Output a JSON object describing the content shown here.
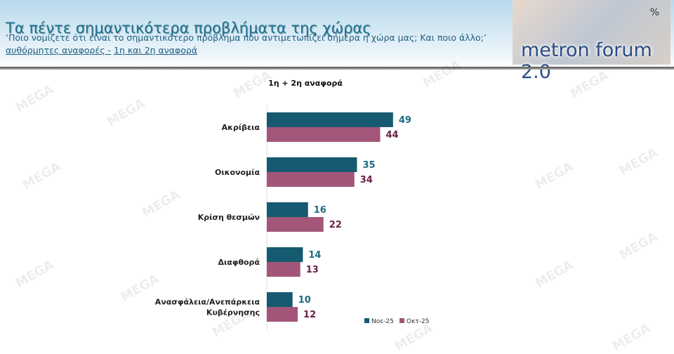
{
  "header": {
    "title": "Τα πέντε σημαντικότερα προβλήματα της χώρας",
    "question": "‘Ποιο νομίζετε ότι είναι το σημαντικότερο πρόβλημα που αντιμετωπίζει σήμερα η χώρα μας; Και ποιο άλλο;’",
    "note_a": "αυθόρμητες αναφορές -",
    "note_b": "1η και 2η αναφορά",
    "logo_text": "metron forum 2.0",
    "logo_symbol": "%"
  },
  "watermark": "MEGA",
  "chart_data": {
    "type": "bar",
    "orientation": "horizontal",
    "title": "1η + 2η αναφορά",
    "categories": [
      "Ακρίβεια",
      "Οικονομία",
      "Κρίση θεσμών",
      "Διαφθορά",
      "Ανασφάλεια/Ανεπάρκεια Κυβέρνησης"
    ],
    "series": [
      {
        "name": "Νοε-25",
        "color": "#155a70",
        "label_color": "#1d6a80",
        "values": [
          49,
          35,
          16,
          14,
          10
        ]
      },
      {
        "name": "Οκτ-25",
        "color": "#a3567a",
        "label_color": "#6b1f45",
        "values": [
          44,
          34,
          22,
          13,
          12
        ]
      }
    ],
    "legend": "bottom-right",
    "grid": false
  }
}
